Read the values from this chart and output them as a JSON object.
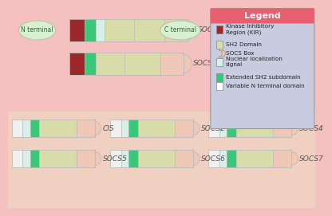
{
  "bg_top_color": "#f5c0c0",
  "bg_bottom_color": "#f0d0c8",
  "legend_bg": "#c8cce0",
  "legend_title_bg": "#e86070",
  "legend_title": "Legend",
  "socs1_label": "SOCS1",
  "socs3_label": "SOCS3",
  "n_terminal_label": "N terminal",
  "c_terminal_label": "C terminal",
  "bottom_labels_row1": [
    "CIS",
    "SOCS2",
    "SOCS4"
  ],
  "bottom_labels_row2": [
    "SOCS5",
    "SOCS6",
    "SOCS7"
  ],
  "kir_color": "#9B2828",
  "sh2_color": "#d8dca8",
  "socs_box_color": "#f0c8b8",
  "nls_color": "#d8eee8",
  "esh2_color": "#38c878",
  "vnt_color": "#f0f0f0",
  "border_color": "#bbbbbb",
  "ellipse_fill": "#d8f0d0",
  "ellipse_edge": "#aaccaa",
  "ellipse_text": "#336633",
  "label_color": "#555555"
}
